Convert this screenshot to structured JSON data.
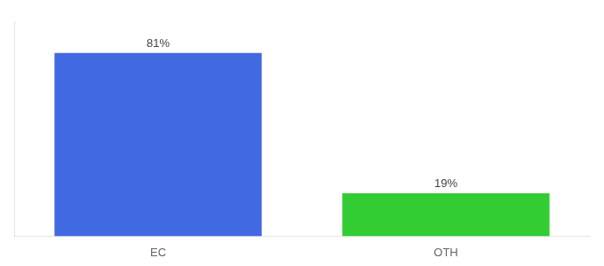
{
  "chart_data": {
    "type": "bar",
    "categories": [
      "EC",
      "OTH"
    ],
    "values": [
      81,
      19
    ],
    "value_labels": [
      "81%",
      "19%"
    ],
    "colors": [
      "#4169e1",
      "#33cc33"
    ],
    "ylim": [
      0,
      95
    ],
    "data_labels": true,
    "tick_labels": "x",
    "grid": false
  }
}
